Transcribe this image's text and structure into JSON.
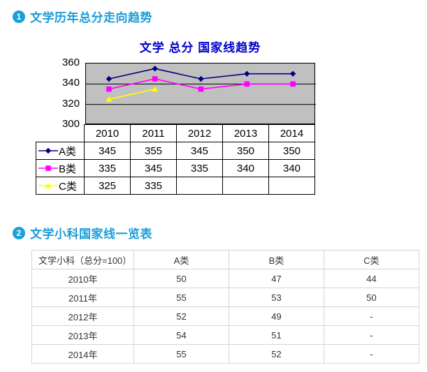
{
  "accent_color": "#189cd8",
  "badge_color": "#1ba0dc",
  "sections": [
    {
      "badge": "1",
      "title": "文学历年总分走向趋势"
    },
    {
      "badge": "2",
      "title": "文学小科国家线一览表"
    }
  ],
  "chart_data": {
    "type": "line",
    "title": "文学  总分  国家线趋势",
    "title_color": "#0000cc",
    "plot_bg": "#c0c0c0",
    "categories": [
      "2010",
      "2011",
      "2012",
      "2013",
      "2014"
    ],
    "series": [
      {
        "name": "A类",
        "marker": "diamond",
        "color": "#000080",
        "values": [
          345,
          355,
          345,
          350,
          350
        ]
      },
      {
        "name": "B类",
        "marker": "square",
        "color": "#ff00ff",
        "values": [
          335,
          345,
          335,
          340,
          340
        ]
      },
      {
        "name": "C类",
        "marker": "triangle",
        "color": "#ffff00",
        "values": [
          325,
          335,
          null,
          null,
          null
        ]
      }
    ],
    "ylim": [
      300,
      360
    ],
    "yticks": [
      360,
      340,
      320,
      300
    ],
    "gridlines": [
      340,
      320
    ],
    "grid": true,
    "legend_position": "bottom-table"
  },
  "subject_table": {
    "headers": [
      "文学小科（总分=100）",
      "A类",
      "B类",
      "C类"
    ],
    "rows": [
      [
        "2010年",
        "50",
        "47",
        "44"
      ],
      [
        "2011年",
        "55",
        "53",
        "50"
      ],
      [
        "2012年",
        "52",
        "49",
        "-"
      ],
      [
        "2013年",
        "54",
        "51",
        "-"
      ],
      [
        "2014年",
        "55",
        "52",
        "-"
      ]
    ]
  }
}
